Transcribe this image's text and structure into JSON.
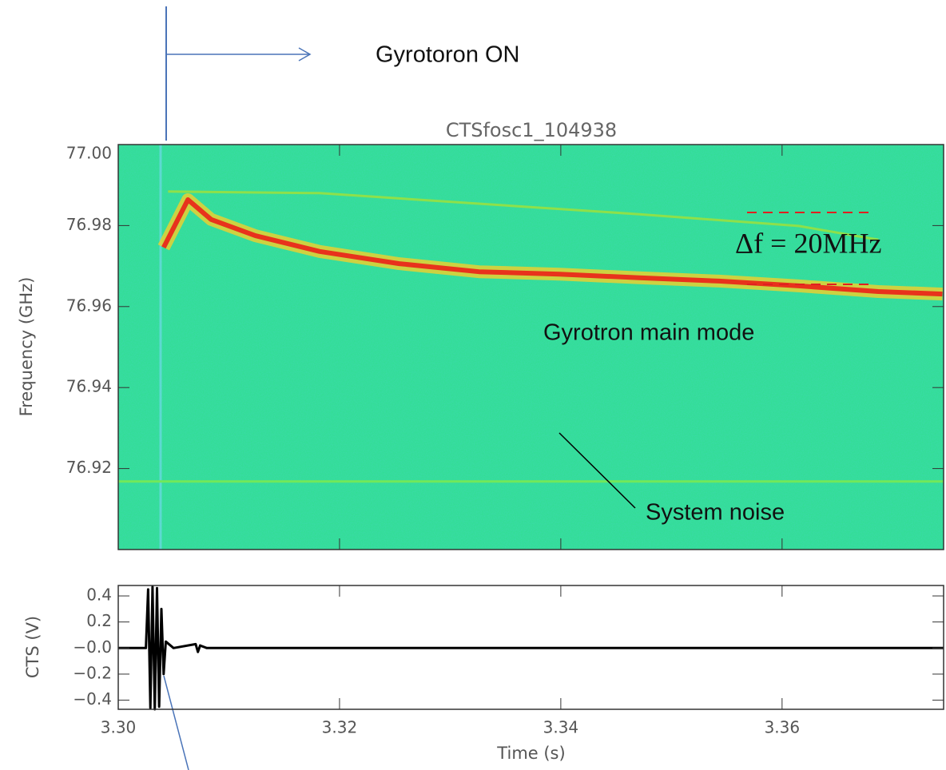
{
  "chart_data": [
    {
      "type": "line",
      "title": "CTSfosc1_104938",
      "ylabel": "Frequency (GHz)",
      "xlim": [
        3.3,
        3.3746
      ],
      "ylim": [
        76.9,
        77.0
      ],
      "yticks": [
        {
          "value": 77.0,
          "label": "77.00"
        },
        76.98,
        76.96,
        76.94,
        76.92
      ],
      "background": "#2ee08a",
      "series": [
        {
          "color": "#e8321c",
          "x": [
            3.3041,
            3.3063,
            3.3084,
            3.3124,
            3.3182,
            3.3254,
            3.3326,
            3.3399,
            3.3471,
            3.3543,
            3.3615,
            3.3687,
            3.3745
          ],
          "values": [
            76.9746,
            76.9864,
            76.9815,
            76.9775,
            76.9736,
            76.9706,
            76.9686,
            76.968,
            76.9671,
            76.9663,
            76.9651,
            76.9637,
            76.9631
          ]
        },
        {
          "color": "#8ee04a",
          "x": [
            3.3045,
            3.3182,
            3.3326,
            3.3471,
            3.3615,
            3.3687
          ],
          "values": [
            76.9884,
            76.988,
            76.9854,
            76.9828,
            76.9799,
            76.9765
          ]
        },
        {
          "color": "#72e85a",
          "x": [
            3.3,
            3.3746
          ],
          "values": [
            76.9168,
            76.9168
          ]
        }
      ],
      "annotations": [
        "Gyrotoron ON",
        "Δf = 20MHz",
        "Gyrotron main mode",
        "System noise"
      ]
    },
    {
      "type": "line",
      "xlabel": "Time (s)",
      "ylabel": "CTS (V)",
      "xlim": [
        3.3,
        3.3746
      ],
      "ylim": [
        -0.47,
        0.48
      ],
      "xticks": [
        {
          "value": 3.3,
          "label": "3.30"
        },
        3.32,
        3.34,
        3.36
      ],
      "yticks": [
        0.4,
        0.2,
        {
          "value": 0,
          "label": "−0.0"
        },
        {
          "value": -0.2,
          "label": "−0.2"
        },
        {
          "value": -0.4,
          "label": "−0.4"
        }
      ],
      "series": [
        {
          "color": "#000000",
          "x": [
            3.3,
            3.3025,
            3.3027,
            3.3029,
            3.3031,
            3.3033,
            3.3035,
            3.3037,
            3.3039,
            3.3041,
            3.3043,
            3.305,
            3.307,
            3.3072,
            3.3074,
            3.308,
            3.3746
          ],
          "values": [
            0,
            0,
            0.45,
            -0.46,
            0.47,
            -0.47,
            0.46,
            -0.45,
            0.3,
            -0.2,
            0.05,
            0,
            0.03,
            -0.03,
            0.02,
            0,
            0
          ]
        }
      ]
    }
  ]
}
